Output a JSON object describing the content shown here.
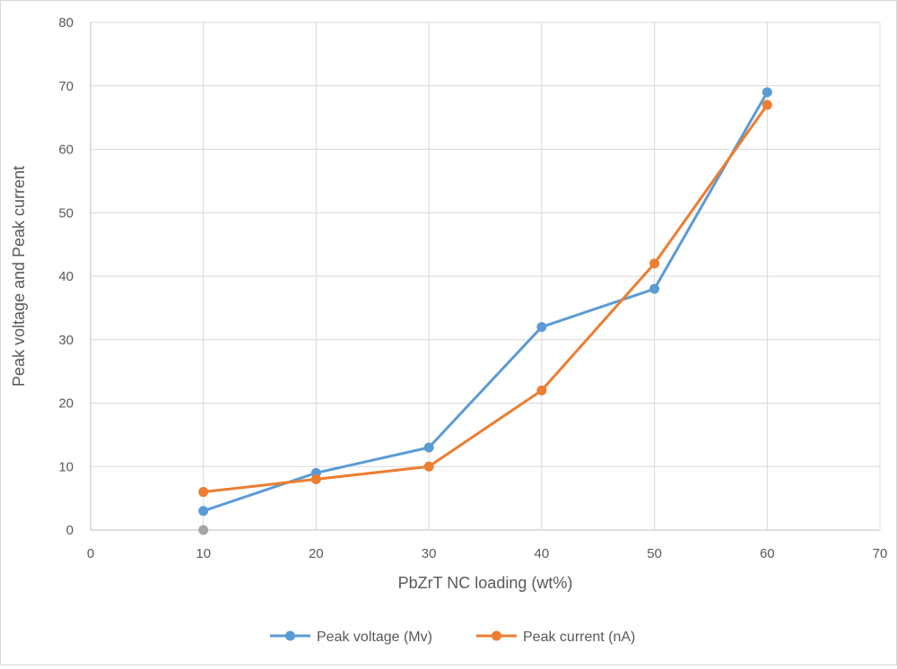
{
  "chart_data": {
    "type": "line",
    "title": "",
    "xlabel": "PbZrT NC loading (wt%)",
    "ylabel": "Peak voltage and Peak current",
    "xlim": [
      0,
      70
    ],
    "ylim": [
      0,
      80
    ],
    "x_ticks": [
      0,
      10,
      20,
      30,
      40,
      50,
      60,
      70
    ],
    "y_ticks": [
      0,
      10,
      20,
      30,
      40,
      50,
      60,
      70,
      80
    ],
    "grid": true,
    "legend_position": "bottom",
    "series": [
      {
        "name": "Peak voltage (Mv)",
        "color": "#5b9bd5",
        "x": [
          10,
          20,
          30,
          40,
          50,
          60
        ],
        "y": [
          3,
          9,
          13,
          32,
          38,
          69
        ]
      },
      {
        "name": "Peak current (nA)",
        "color": "#ed7d31",
        "x": [
          10,
          20,
          30,
          40,
          50,
          60
        ],
        "y": [
          6,
          8,
          10,
          22,
          42,
          67
        ]
      },
      {
        "name": "",
        "color": "#a5a5a5",
        "x": [
          10
        ],
        "y": [
          0
        ]
      }
    ]
  }
}
